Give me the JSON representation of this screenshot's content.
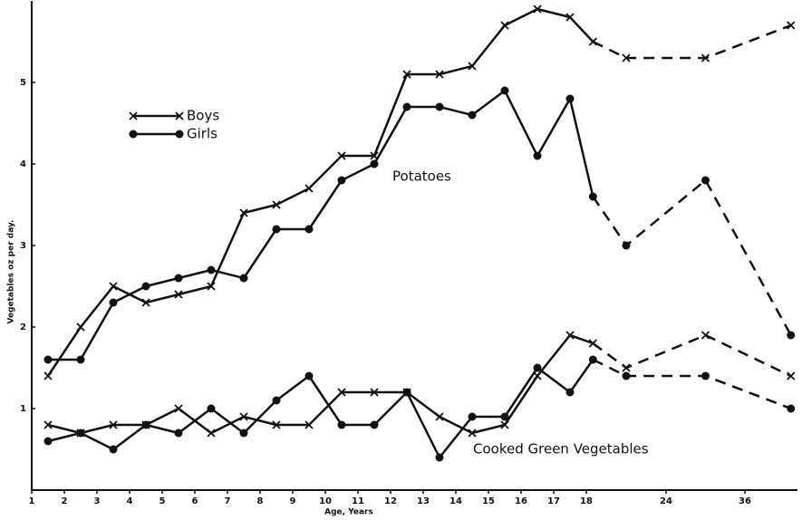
{
  "chart_data": {
    "type": "line",
    "xlabel": "Age, Years",
    "ylabel": "Vegetables oz per day.",
    "x": [
      1.5,
      2.5,
      3.5,
      4.5,
      5.5,
      6.5,
      7.5,
      8.5,
      9.5,
      10.5,
      11.5,
      12.5,
      13.5,
      14.5,
      15.5,
      16.5,
      17.5,
      18.5,
      21,
      30,
      43
    ],
    "groups": [
      {
        "label": "Potatoes",
        "series": [
          {
            "name": "Boys",
            "marker": "x",
            "color": "#111111",
            "values": [
              1.4,
              2.0,
              2.5,
              2.3,
              2.4,
              2.5,
              3.4,
              3.5,
              3.7,
              4.1,
              4.1,
              5.1,
              5.1,
              5.2,
              5.7,
              5.9,
              5.8,
              5.5,
              5.3,
              5.3,
              5.7
            ]
          },
          {
            "name": "Girls",
            "marker": "o",
            "color": "#111111",
            "values": [
              1.6,
              1.6,
              2.3,
              2.5,
              2.6,
              2.7,
              2.6,
              3.2,
              3.2,
              3.8,
              4.0,
              4.7,
              4.7,
              4.6,
              4.9,
              4.1,
              4.8,
              3.6,
              3.0,
              3.8,
              1.9
            ]
          }
        ]
      },
      {
        "label": "Cooked Green Vegetables",
        "series": [
          {
            "name": "Boys",
            "marker": "x",
            "color": "#111111",
            "values": [
              0.8,
              0.7,
              0.8,
              0.8,
              1.0,
              0.7,
              0.9,
              0.8,
              0.8,
              1.2,
              1.2,
              1.2,
              0.9,
              0.7,
              0.8,
              1.4,
              1.9,
              1.8,
              1.5,
              1.9,
              1.4
            ]
          },
          {
            "name": "Girls",
            "marker": "o",
            "color": "#111111",
            "values": [
              0.6,
              0.7,
              0.5,
              0.8,
              0.7,
              1.0,
              0.7,
              1.1,
              1.4,
              0.8,
              0.8,
              1.2,
              0.4,
              0.9,
              0.9,
              1.5,
              1.2,
              1.6,
              1.4,
              1.4,
              1.0
            ]
          }
        ]
      }
    ],
    "dashed_after": 18,
    "xlim": [
      1,
      44
    ],
    "xticks": [
      1,
      2,
      3,
      4,
      5,
      6,
      7,
      8,
      9,
      10,
      11,
      12,
      13,
      14,
      15,
      16,
      17,
      18,
      24,
      36
    ],
    "ylim": [
      0,
      6
    ],
    "yticks": [
      1,
      2,
      3,
      4,
      5
    ],
    "grid": false
  }
}
